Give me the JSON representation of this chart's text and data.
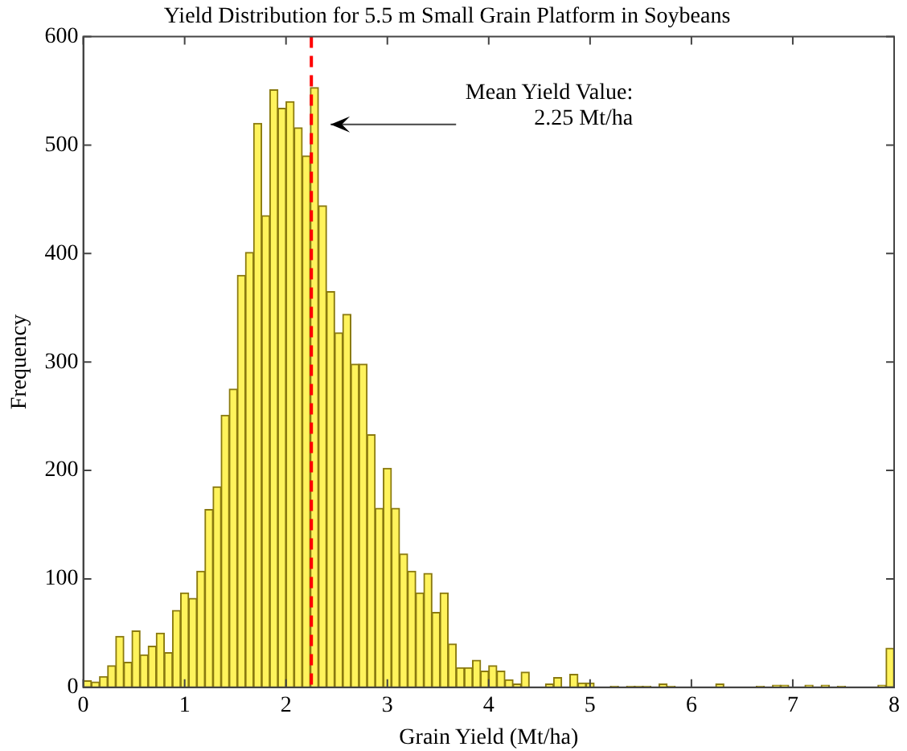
{
  "chart_data": {
    "type": "histogram",
    "title": "Yield Distribution for 5.5 m Small Grain Platform in Soybeans",
    "xlabel": "Grain Yield (Mt/ha)",
    "ylabel": "Frequency",
    "bins": [
      0,
      0.08,
      0.16,
      0.24,
      0.32,
      0.4,
      0.48,
      0.56,
      0.64,
      0.72,
      0.8,
      0.88,
      0.96,
      1.04,
      1.12,
      1.2,
      1.28,
      1.36,
      1.44,
      1.52,
      1.6,
      1.68,
      1.76,
      1.84,
      1.92,
      2,
      2.08,
      2.16,
      2.24,
      2.32,
      2.4,
      2.48,
      2.56,
      2.64,
      2.72,
      2.8,
      2.88,
      2.96,
      3.04,
      3.12,
      3.2,
      3.28,
      3.36,
      3.44,
      3.52,
      3.6,
      3.68,
      3.76,
      3.84,
      3.92,
      4,
      4.08,
      4.16,
      4.24,
      4.32,
      4.4,
      4.48,
      4.56,
      4.64,
      4.72,
      4.8,
      4.88,
      4.96,
      5.04,
      5.12,
      5.2,
      5.28,
      5.36,
      5.44,
      5.52,
      5.6,
      5.68,
      5.76,
      5.84,
      5.92,
      6,
      6.08,
      6.16,
      6.24,
      6.32,
      6.4,
      6.48,
      6.56,
      6.64,
      6.72,
      6.8,
      6.88,
      6.96,
      7.04,
      7.12,
      7.2,
      7.28,
      7.36,
      7.44,
      7.52,
      7.6,
      7.68,
      7.76,
      7.84,
      7.92,
      8
    ],
    "values": [
      6,
      5,
      10,
      20,
      47,
      23,
      52,
      30,
      38,
      50,
      32,
      71,
      87,
      82,
      107,
      164,
      185,
      251,
      275,
      380,
      401,
      520,
      435,
      551,
      534,
      540,
      516,
      490,
      553,
      444,
      365,
      327,
      344,
      298,
      298,
      233,
      165,
      202,
      165,
      123,
      107,
      87,
      105,
      69,
      87,
      40,
      18,
      18,
      25,
      15,
      20,
      15,
      7,
      3,
      14,
      0,
      0,
      3,
      9,
      0,
      12,
      4,
      4,
      0,
      0,
      1,
      0,
      1,
      1,
      1,
      0,
      3,
      1,
      0,
      0,
      0,
      0,
      0,
      3,
      0,
      0,
      0,
      0,
      1,
      0,
      2,
      2,
      0,
      0,
      2,
      0,
      2,
      0,
      1,
      0,
      0,
      0,
      0,
      2,
      36
    ],
    "color": "#fff35c",
    "xlim": [
      0,
      8
    ],
    "xticks": [
      0,
      1,
      2,
      3,
      4,
      5,
      6,
      7,
      8
    ],
    "ylim": [
      0,
      600
    ],
    "yticks": [
      0,
      100,
      200,
      300,
      400,
      500,
      600
    ],
    "grid": false,
    "ref_lines": [
      {
        "axis": "x",
        "value": 2.25,
        "color": "#ff0000",
        "line_style": "dashed"
      }
    ],
    "annotations": [
      "Mean Yield Value:\n2.25 Mt/ha"
    ]
  }
}
